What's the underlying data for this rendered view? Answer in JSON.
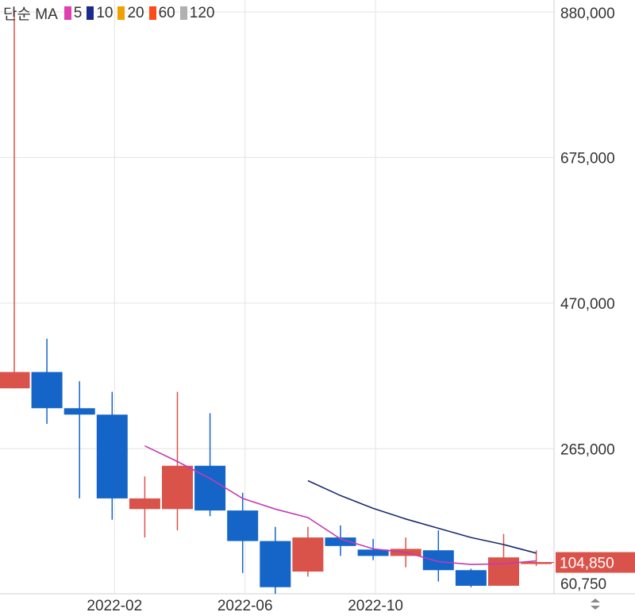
{
  "legend": {
    "label": "단순 MA",
    "items": [
      {
        "label": "5",
        "color": "#e040b0"
      },
      {
        "label": "10",
        "color": "#1c2a8c"
      },
      {
        "label": "20",
        "color": "#f0a000"
      },
      {
        "label": "60",
        "color": "#ff4a1a"
      },
      {
        "label": "120",
        "color": "#b0b0b0"
      }
    ]
  },
  "colors": {
    "up": "#d9534a",
    "down": "#1565c8",
    "ma5": "#c23ab4",
    "ma10": "#1c2a6c",
    "grid": "#e4e4e4"
  },
  "chart_data": {
    "type": "candlestick",
    "interval": "monthly",
    "ylim": [
      60750,
      880000
    ],
    "y_ticks": [
      880000,
      675000,
      470000,
      265000,
      60750
    ],
    "y_tick_labels": [
      "880,000",
      "675,000",
      "470,000",
      "265,000",
      "60,750"
    ],
    "x_tick_labels": [
      {
        "month_index": 3,
        "label": "2022-02"
      },
      {
        "month_index": 7,
        "label": "2022-06"
      },
      {
        "month_index": 11,
        "label": "2022-10"
      }
    ],
    "current_price": 104850,
    "current_price_label": "104,850",
    "candles": [
      {
        "month": "2021-11",
        "open": 350000,
        "close": 373000,
        "high": 880000,
        "low": 350000
      },
      {
        "month": "2021-12",
        "open": 373000,
        "close": 322000,
        "high": 420000,
        "low": 300000
      },
      {
        "month": "2022-01",
        "open": 322000,
        "close": 313000,
        "high": 360000,
        "low": 195000
      },
      {
        "month": "2022-02",
        "open": 313000,
        "close": 195000,
        "high": 345000,
        "low": 165000
      },
      {
        "month": "2022-03",
        "open": 180000,
        "close": 195000,
        "high": 226000,
        "low": 140000
      },
      {
        "month": "2022-04",
        "open": 180000,
        "close": 241000,
        "high": 345000,
        "low": 150000
      },
      {
        "month": "2022-05",
        "open": 241000,
        "close": 178000,
        "high": 315000,
        "low": 170000
      },
      {
        "month": "2022-06",
        "open": 178000,
        "close": 135000,
        "high": 203000,
        "low": 90000
      },
      {
        "month": "2022-07",
        "open": 135000,
        "close": 70000,
        "high": 155000,
        "low": 60750
      },
      {
        "month": "2022-08",
        "open": 92000,
        "close": 140000,
        "high": 155000,
        "low": 85000
      },
      {
        "month": "2022-09",
        "open": 140000,
        "close": 128000,
        "high": 157000,
        "low": 114000
      },
      {
        "month": "2022-10",
        "open": 123000,
        "close": 114000,
        "high": 138000,
        "low": 108000
      },
      {
        "month": "2022-11",
        "open": 114000,
        "close": 124000,
        "high": 140000,
        "low": 98000
      },
      {
        "month": "2022-12",
        "open": 122000,
        "close": 94000,
        "high": 150000,
        "low": 78000
      },
      {
        "month": "2023-01",
        "open": 94000,
        "close": 72000,
        "high": 96000,
        "low": 70000
      },
      {
        "month": "2023-02",
        "open": 72000,
        "close": 112000,
        "high": 145000,
        "low": 72000
      },
      {
        "month": "2023-03",
        "open": 104000,
        "close": 104850,
        "high": 122000,
        "low": 100000
      }
    ],
    "ma5": [
      null,
      null,
      null,
      null,
      269000,
      247000,
      223000,
      195000,
      180000,
      168000,
      138000,
      124000,
      119000,
      106000,
      102000,
      103000,
      107000
    ],
    "ma10": [
      null,
      null,
      null,
      null,
      null,
      null,
      null,
      null,
      null,
      220000,
      199000,
      181000,
      166000,
      153000,
      140000,
      130000,
      118000
    ]
  }
}
